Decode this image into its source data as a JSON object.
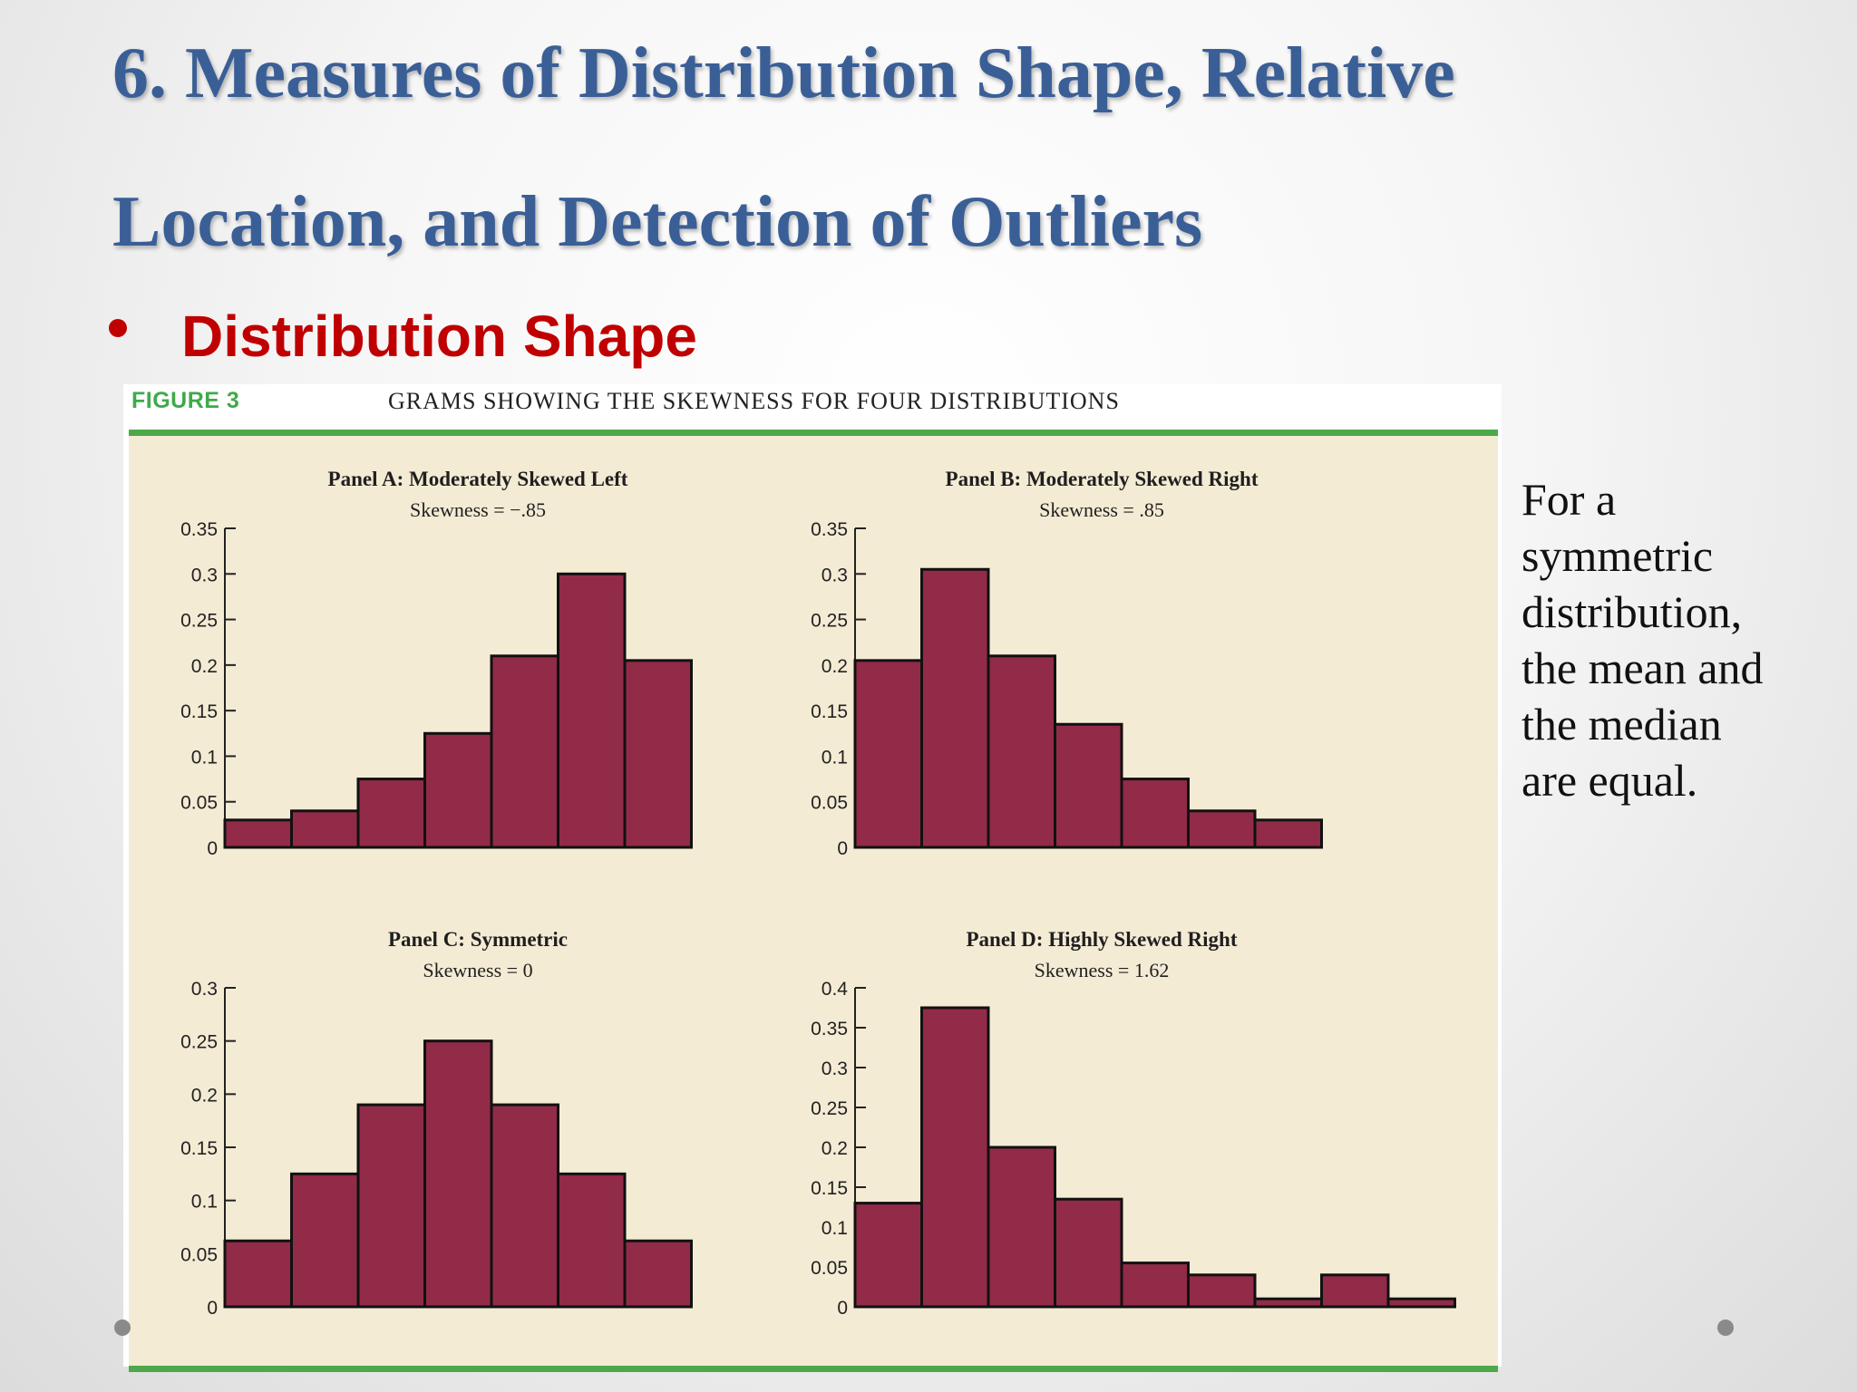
{
  "slide": {
    "title_line1": "6. Measures of Distribution Shape, Relative",
    "title_line2": "Location, and Detection of Outliers",
    "bullet": "Distribution Shape",
    "figure_label": "FIGURE 3",
    "figure_caption": "GRAMS SHOWING THE SKEWNESS FOR FOUR DISTRIBUTIONS",
    "side_text": [
      "For a",
      "symmetric",
      "distribution,",
      "the mean and",
      "the median",
      "are equal."
    ]
  },
  "colors": {
    "title": "#3a5f97",
    "bullet": "#c00000",
    "bar_fill": "#922b48",
    "panel_bg": "#f4ebd4",
    "figure_rule": "#4ea84a",
    "figure_label": "#3faa4a"
  },
  "chart_data": [
    {
      "type": "bar",
      "title": "Panel A: Moderately Skewed Left",
      "subtitle": "Skewness = −.85",
      "values": [
        0.03,
        0.04,
        0.075,
        0.125,
        0.21,
        0.3,
        0.205
      ],
      "ylim": [
        0,
        0.35
      ],
      "yticks": [
        "0",
        "0.05",
        "0.1",
        "0.15",
        "0.2",
        "0.25",
        "0.3",
        "0.35"
      ]
    },
    {
      "type": "bar",
      "title": "Panel B: Moderately Skewed Right",
      "subtitle": "Skewness = .85",
      "values": [
        0.205,
        0.305,
        0.21,
        0.135,
        0.075,
        0.04,
        0.03
      ],
      "ylim": [
        0,
        0.35
      ],
      "yticks": [
        "0",
        "0.05",
        "0.1",
        "0.15",
        "0.2",
        "0.25",
        "0.3",
        "0.35"
      ]
    },
    {
      "type": "bar",
      "title": "Panel C: Symmetric",
      "subtitle": "Skewness = 0",
      "values": [
        0.062,
        0.125,
        0.19,
        0.25,
        0.19,
        0.125,
        0.062
      ],
      "ylim": [
        0,
        0.3
      ],
      "yticks": [
        "0",
        "0.05",
        "0.1",
        "0.15",
        "0.2",
        "0.25",
        "0.3"
      ]
    },
    {
      "type": "bar",
      "title": "Panel D: Highly Skewed Right",
      "subtitle": "Skewness = 1.62",
      "values": [
        0.13,
        0.375,
        0.2,
        0.135,
        0.055,
        0.04,
        0.01,
        0.04,
        0.01
      ],
      "ylim": [
        0,
        0.4
      ],
      "yticks": [
        "0",
        "0.05",
        "0.1",
        "0.15",
        "0.2",
        "0.25",
        "0.3",
        "0.35",
        "0.4"
      ]
    }
  ]
}
